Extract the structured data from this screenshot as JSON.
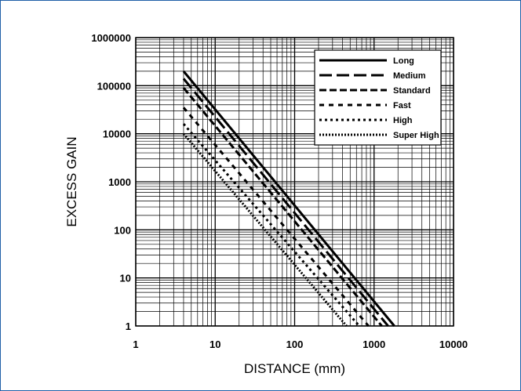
{
  "chart_data": {
    "type": "line",
    "title": "",
    "xlabel": "DISTANCE (mm)",
    "ylabel": "EXCESS GAIN",
    "x_scale": "log",
    "y_scale": "log",
    "xlim": [
      1,
      10000
    ],
    "ylim": [
      1,
      1000000
    ],
    "x_ticks": [
      "1",
      "10",
      "100",
      "1000",
      "10000"
    ],
    "y_ticks": [
      "1",
      "10",
      "100",
      "1000",
      "10000",
      "100000",
      "1000000"
    ],
    "grid": true,
    "legend_position": "top-right",
    "series": [
      {
        "name": "Long",
        "style": "solid",
        "x": [
          4,
          1800
        ],
        "y": [
          200000,
          1
        ]
      },
      {
        "name": "Medium",
        "style": "long-dash",
        "x": [
          4,
          1500
        ],
        "y": [
          140000,
          1
        ]
      },
      {
        "name": "Standard",
        "style": "dash",
        "x": [
          4,
          1250
        ],
        "y": [
          90000,
          1
        ]
      },
      {
        "name": "Fast",
        "style": "short-dash",
        "x": [
          4,
          850
        ],
        "y": [
          35000,
          1
        ]
      },
      {
        "name": "High",
        "style": "dot",
        "x": [
          4,
          650
        ],
        "y": [
          16000,
          1
        ]
      },
      {
        "name": "Super High",
        "style": "fine-dot",
        "x": [
          4,
          450
        ],
        "y": [
          10000,
          1
        ]
      }
    ]
  }
}
